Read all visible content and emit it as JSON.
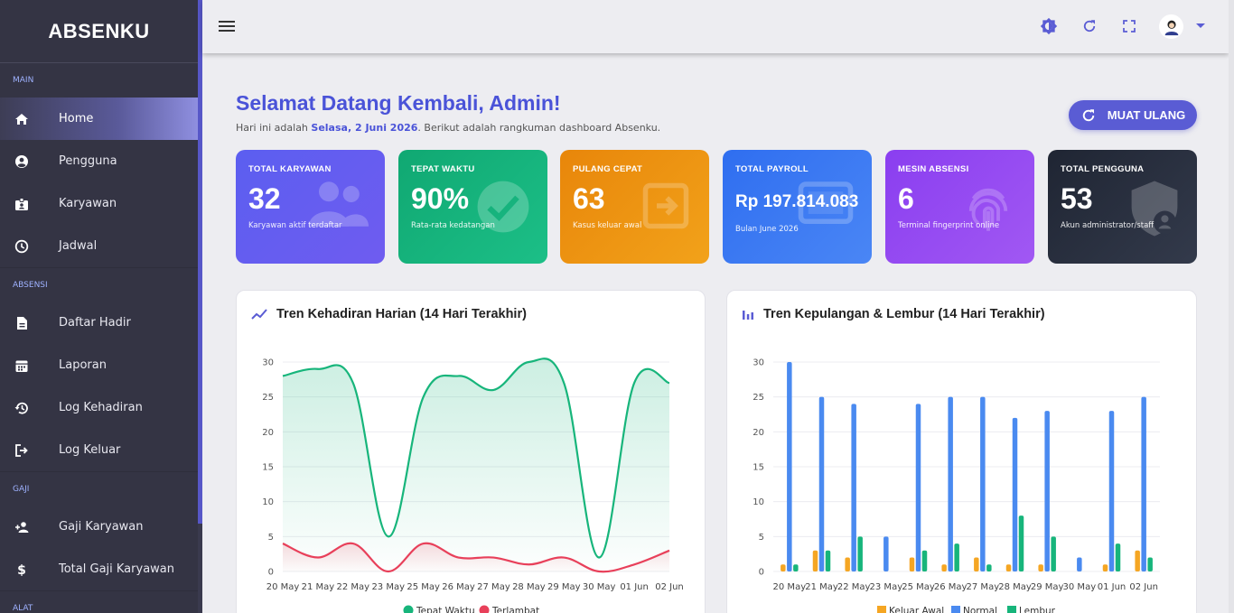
{
  "brand": "ABSENKU",
  "sidebar": {
    "sections": [
      {
        "title": "MAIN",
        "items": [
          {
            "label": "Home",
            "icon": "home-icon",
            "active": true
          },
          {
            "label": "Pengguna",
            "icon": "account-circle-icon"
          },
          {
            "label": "Karyawan",
            "icon": "badge-icon"
          },
          {
            "label": "Jadwal",
            "icon": "clock-icon"
          }
        ]
      },
      {
        "title": "ABSENSI",
        "items": [
          {
            "label": "Daftar Hadir",
            "icon": "document-icon"
          },
          {
            "label": "Laporan",
            "icon": "calendar-icon"
          },
          {
            "label": "Log Kehadiran",
            "icon": "history-icon"
          },
          {
            "label": "Log Keluar",
            "icon": "logout-icon"
          }
        ]
      },
      {
        "title": "GAJI",
        "items": [
          {
            "label": "Gaji Karyawan",
            "icon": "person-add-icon"
          },
          {
            "label": "Total Gaji Karyawan",
            "icon": "dollar-icon"
          }
        ]
      },
      {
        "title": "ALAT",
        "items": []
      }
    ]
  },
  "topbar": {
    "icons": [
      "menu-icon",
      "theme-toggle-icon",
      "refresh-icon",
      "fullscreen-icon",
      "avatar",
      "chevron-down-icon"
    ]
  },
  "welcome": {
    "title": "Selamat Datang Kembali, Admin!",
    "sub_prefix": "Hari ini adalah ",
    "sub_date": "Selasa, 2 Juni 2026",
    "sub_suffix": ". Berikut adalah rangkuman dashboard Absenku.",
    "reload_label": "MUAT ULANG"
  },
  "cards": [
    {
      "label": "TOTAL KARYAWAN",
      "value": "32",
      "desc": "Karyawan aktif terdaftar",
      "color_from": "#5b5ef0",
      "color_to": "#6f5cf0",
      "icon": "people-icon"
    },
    {
      "label": "TEPAT WAKTU",
      "value": "90%",
      "desc": "Rata-rata kedatangan",
      "color_from": "#10a872",
      "color_to": "#1cbf87",
      "icon": "check-circle-icon"
    },
    {
      "label": "PULANG CEPAT",
      "value": "63",
      "desc": "Kasus keluar awal",
      "color_from": "#e8860a",
      "color_to": "#f2a21a",
      "icon": "exit-icon"
    },
    {
      "label": "TOTAL PAYROLL",
      "value": "Rp 197.814.083",
      "desc": "Bulan June 2026",
      "color_from": "#2f6ef0",
      "color_to": "#4a86f5",
      "icon": "payroll-icon"
    },
    {
      "label": "MESIN ABSENSI",
      "value": "6",
      "desc": "Terminal fingerprint online",
      "color_from": "#8a3ef0",
      "color_to": "#a158f3",
      "icon": "fingerprint-icon"
    },
    {
      "label": "TOTAL PENGGUNA",
      "value": "53",
      "desc": "Akun administrator/staff",
      "color_from": "#1f2533",
      "color_to": "#333a4b",
      "icon": "shield-user-icon"
    }
  ],
  "panels": {
    "left_title": "Tren Kehadiran Harian (14 Hari Terakhir)",
    "right_title": "Tren Kepulangan & Lembur (14 Hari Terakhir)"
  },
  "chart_data": [
    {
      "type": "line",
      "title": "Tren Kehadiran Harian (14 Hari Terakhir)",
      "categories": [
        "20 May",
        "21 May",
        "22 May",
        "23 May",
        "25 May",
        "26 May",
        "27 May",
        "28 May",
        "29 May",
        "30 May",
        "01 Jun",
        "02 Jun"
      ],
      "series": [
        {
          "name": "Tepat Waktu",
          "color": "#17b57b",
          "values": [
            28,
            29,
            27,
            5,
            25,
            28,
            26,
            30,
            27,
            2,
            27,
            27
          ]
        },
        {
          "name": "Terlambat",
          "color": "#e8405a",
          "values": [
            4,
            2,
            4,
            0,
            4,
            2,
            2,
            1,
            2,
            0,
            1,
            3
          ]
        }
      ],
      "ylim": [
        0,
        30
      ],
      "yticks": [
        0,
        5,
        10,
        15,
        20,
        25,
        30
      ],
      "legend": "bottom",
      "grid": true
    },
    {
      "type": "bar",
      "title": "Tren Kepulangan & Lembur (14 Hari Terakhir)",
      "categories": [
        "20 May",
        "21 May",
        "22 May",
        "23 May",
        "25 May",
        "26 May",
        "27 May",
        "28 May",
        "29 May",
        "30 May",
        "01 Jun",
        "02 Jun"
      ],
      "series": [
        {
          "name": "Keluar Awal",
          "color": "#f5a623",
          "values": [
            1,
            3,
            2,
            0,
            2,
            1,
            2,
            1,
            1,
            0,
            1,
            3
          ]
        },
        {
          "name": "Normal",
          "color": "#4a8af0",
          "values": [
            30,
            25,
            24,
            5,
            24,
            25,
            25,
            22,
            23,
            2,
            23,
            25
          ]
        },
        {
          "name": "Lembur",
          "color": "#17b57b",
          "values": [
            1,
            3,
            5,
            0,
            3,
            4,
            1,
            8,
            5,
            0,
            4,
            2
          ]
        }
      ],
      "ylim": [
        0,
        30
      ],
      "yticks": [
        0,
        5,
        10,
        15,
        20,
        25,
        30
      ],
      "legend": "bottom",
      "grid": true
    }
  ]
}
